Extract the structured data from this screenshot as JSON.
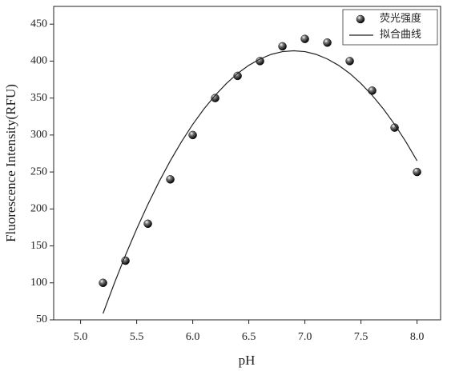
{
  "chart_data": {
    "type": "scatter",
    "xlabel": "pH",
    "ylabel": "Fluorescence Intensity(RFU)",
    "xlim": [
      4.76,
      8.21
    ],
    "ylim": [
      50,
      474
    ],
    "xticks": [
      {
        "value": 5,
        "label": "5.0"
      },
      5.5,
      {
        "value": 6,
        "label": "6.0"
      },
      6.5,
      {
        "value": 7,
        "label": "7.0"
      },
      7.5,
      {
        "value": 8,
        "label": "8.0"
      }
    ],
    "yticks": [
      50,
      100,
      150,
      200,
      250,
      300,
      350,
      400,
      450
    ],
    "legend": "upper right",
    "series": [
      {
        "name": "荧光强度",
        "type": "scatter",
        "color": "#111111",
        "x": [
          5.2,
          5.4,
          5.6,
          5.8,
          6.0,
          6.2,
          6.4,
          6.6,
          6.8,
          7.0,
          7.2,
          7.4,
          7.6,
          7.8,
          8.0
        ],
        "values": [
          100,
          130,
          180,
          240,
          300,
          350,
          380,
          400,
          420,
          430,
          425,
          400,
          360,
          310,
          250
        ]
      },
      {
        "name": "拟合曲线",
        "type": "line",
        "color": "#222222",
        "x": [
          5.2,
          5.3,
          5.4,
          5.5,
          5.6,
          5.7,
          5.8,
          5.9,
          6.0,
          6.1,
          6.2,
          6.3,
          6.4,
          6.5,
          6.6,
          6.7,
          6.8,
          6.9,
          7.0,
          7.1,
          7.2,
          7.3,
          7.4,
          7.5,
          7.6,
          7.7,
          7.8,
          7.9,
          8.0
        ],
        "values": [
          58.5,
          99.1,
          137.3,
          172.9,
          206.1,
          236.9,
          265.2,
          291,
          314.4,
          335.3,
          353.7,
          369.7,
          383.3,
          394.3,
          402.9,
          409.1,
          412.8,
          414,
          412.8,
          409.1,
          402.9,
          394.3,
          383.3,
          369.7,
          353.7,
          335.3,
          314.4,
          291,
          265.2
        ]
      }
    ]
  }
}
